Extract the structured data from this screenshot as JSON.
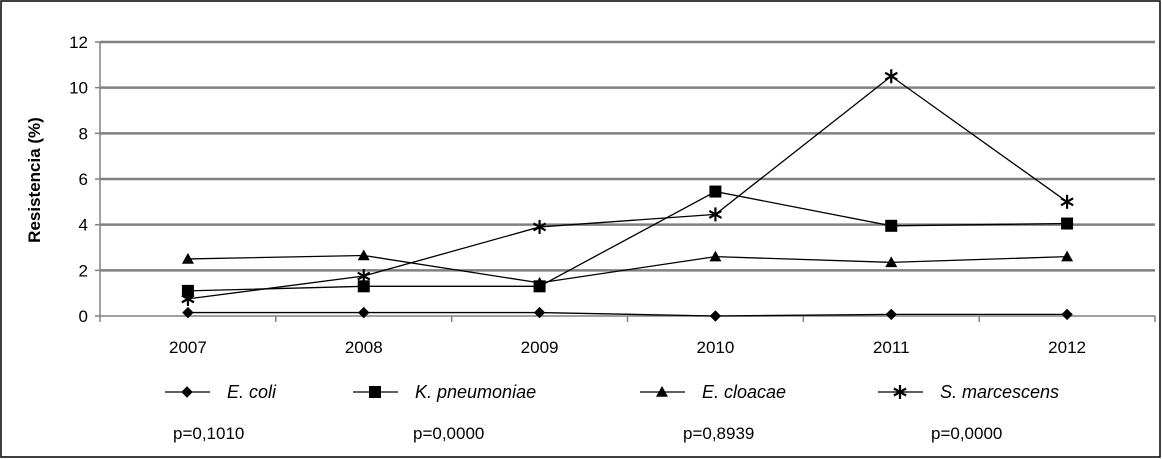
{
  "chart_data": {
    "type": "line",
    "title": "",
    "xlabel": "",
    "ylabel": "Resistencia (%)",
    "categories": [
      "2007",
      "2008",
      "2009",
      "2010",
      "2011",
      "2012"
    ],
    "ylim": [
      0,
      12
    ],
    "yticks": [
      "0",
      "2",
      "4",
      "6",
      "8",
      "10",
      "12"
    ],
    "grid": true,
    "legend_position": "bottom",
    "series": [
      {
        "name": "E. coli",
        "marker": "diamond",
        "values": [
          0.15,
          0.15,
          0.15,
          0.0,
          0.07,
          0.07
        ],
        "pvalue": "p=0,1010"
      },
      {
        "name": "K. pneumoniae",
        "marker": "square",
        "values": [
          1.1,
          1.3,
          1.3,
          5.45,
          3.95,
          4.05
        ],
        "pvalue": "p=0,0000"
      },
      {
        "name": "E. cloacae",
        "marker": "triangle",
        "values": [
          2.5,
          2.65,
          1.45,
          2.6,
          2.35,
          2.6
        ],
        "pvalue": "p=0,8939"
      },
      {
        "name": "S. marcescens",
        "marker": "asterisk",
        "values": [
          0.75,
          1.75,
          3.9,
          4.45,
          10.5,
          5.0
        ],
        "pvalue": "p=0,0000"
      }
    ],
    "colors": {
      "line": "#000000",
      "grid": "#808080",
      "border": "#000000"
    }
  }
}
